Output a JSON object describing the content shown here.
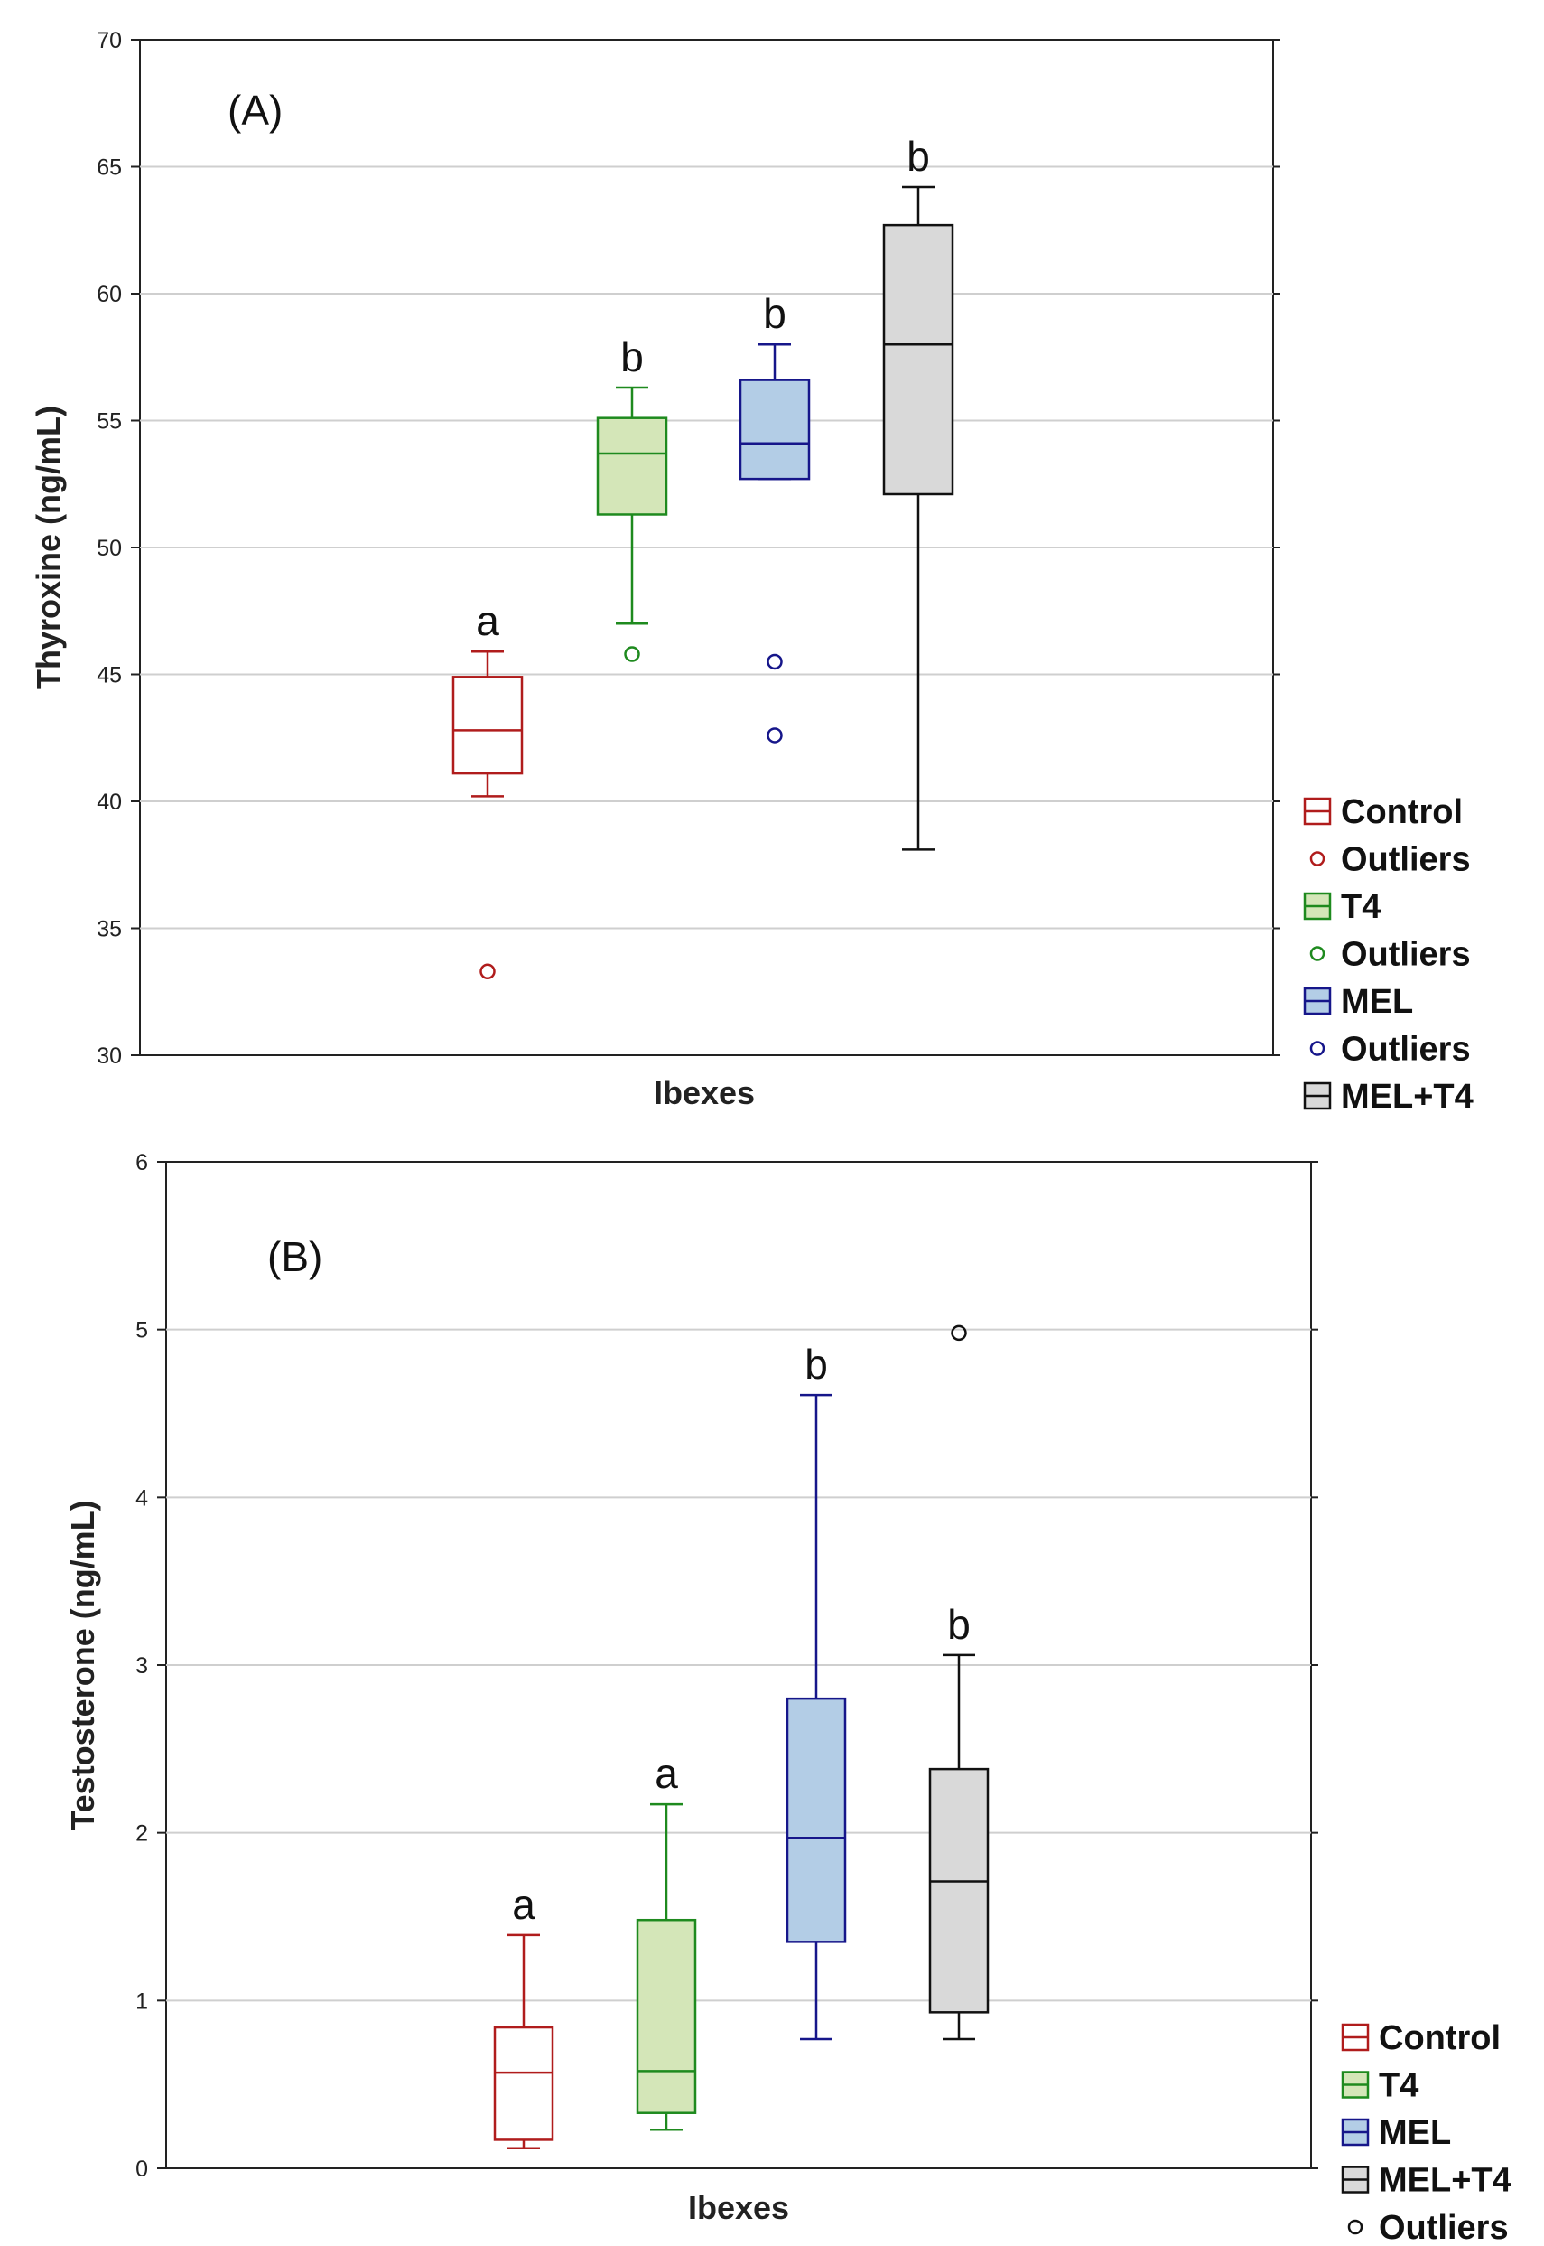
{
  "chart_data": [
    {
      "type": "boxplot",
      "panel_label": "(A)",
      "xlabel": "Ibexes",
      "ylabel": "Thyroxine (ng/mL)",
      "ylim": [
        30,
        70
      ],
      "yticks": [
        30,
        35,
        40,
        45,
        50,
        55,
        60,
        65,
        70
      ],
      "grid": true,
      "legend_position": "right-bottom",
      "series": [
        {
          "name": "Control",
          "color": "#b01c1c",
          "fill": "#ffffff",
          "whisker_low": 40.2,
          "q1": 41.1,
          "median": 42.8,
          "q3": 44.9,
          "whisker_high": 45.9,
          "outliers": [
            33.3
          ],
          "letter": "a"
        },
        {
          "name": "T4",
          "color": "#1e8a1e",
          "fill": "#d4e6b8",
          "whisker_low": 47.0,
          "q1": 51.3,
          "median": 53.7,
          "q3": 55.1,
          "whisker_high": 56.3,
          "outliers": [
            45.8
          ],
          "letter": "b"
        },
        {
          "name": "MEL",
          "color": "#16168a",
          "fill": "#b3cde6",
          "whisker_low": 52.7,
          "q1": 52.7,
          "median": 54.1,
          "q3": 56.6,
          "whisker_high": 58.0,
          "outliers": [
            45.5,
            42.6
          ],
          "letter": "b"
        },
        {
          "name": "MEL+T4",
          "color": "#111111",
          "fill": "#d9d9d9",
          "whisker_low": 38.1,
          "q1": 52.1,
          "median": 58.0,
          "q3": 62.7,
          "whisker_high": 64.2,
          "outliers": [],
          "letter": "b"
        }
      ],
      "legend": [
        {
          "label": "Control",
          "kind": "box",
          "color": "#b01c1c",
          "fill": "#ffffff"
        },
        {
          "label": "Outliers",
          "kind": "outlier",
          "color": "#b01c1c"
        },
        {
          "label": "T4",
          "kind": "box",
          "color": "#1e8a1e",
          "fill": "#d4e6b8"
        },
        {
          "label": "Outliers",
          "kind": "outlier",
          "color": "#1e8a1e"
        },
        {
          "label": "MEL",
          "kind": "box",
          "color": "#16168a",
          "fill": "#b3cde6"
        },
        {
          "label": "Outliers",
          "kind": "outlier",
          "color": "#16168a"
        },
        {
          "label": "MEL+T4",
          "kind": "box",
          "color": "#111111",
          "fill": "#d9d9d9"
        }
      ]
    },
    {
      "type": "boxplot",
      "panel_label": "(B)",
      "xlabel": "Ibexes",
      "ylabel": "Testosterone (ng/mL)",
      "ylim": [
        0,
        6
      ],
      "yticks": [
        0,
        1,
        2,
        3,
        4,
        5,
        6
      ],
      "grid": true,
      "legend_position": "right-bottom",
      "series": [
        {
          "name": "Control",
          "color": "#b01c1c",
          "fill": "#ffffff",
          "whisker_low": 0.12,
          "q1": 0.17,
          "median": 0.57,
          "q3": 0.84,
          "whisker_high": 1.39,
          "outliers": [],
          "letter": "a"
        },
        {
          "name": "T4",
          "color": "#1e8a1e",
          "fill": "#d4e6b8",
          "whisker_low": 0.23,
          "q1": 0.33,
          "median": 0.58,
          "q3": 1.48,
          "whisker_high": 2.17,
          "outliers": [],
          "letter": "a"
        },
        {
          "name": "MEL",
          "color": "#16168a",
          "fill": "#b3cde6",
          "whisker_low": 0.77,
          "q1": 1.35,
          "median": 1.97,
          "q3": 2.8,
          "whisker_high": 4.61,
          "outliers": [],
          "letter": "b"
        },
        {
          "name": "MEL+T4",
          "color": "#111111",
          "fill": "#d9d9d9",
          "whisker_low": 0.77,
          "q1": 0.93,
          "median": 1.71,
          "q3": 2.38,
          "whisker_high": 3.06,
          "outliers": [
            4.98
          ],
          "letter": "b"
        }
      ],
      "legend": [
        {
          "label": "Control",
          "kind": "box",
          "color": "#b01c1c",
          "fill": "#ffffff"
        },
        {
          "label": "T4",
          "kind": "box",
          "color": "#1e8a1e",
          "fill": "#d4e6b8"
        },
        {
          "label": "MEL",
          "kind": "box",
          "color": "#16168a",
          "fill": "#b3cde6"
        },
        {
          "label": "MEL+T4",
          "kind": "box",
          "color": "#111111",
          "fill": "#d9d9d9"
        },
        {
          "label": "Outliers",
          "kind": "outlier",
          "color": "#111111"
        }
      ]
    }
  ]
}
